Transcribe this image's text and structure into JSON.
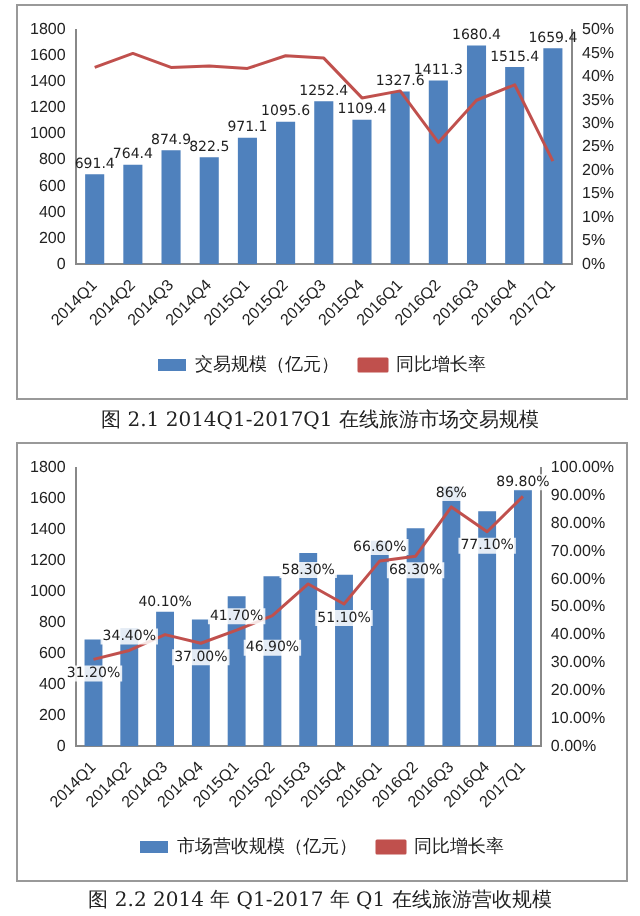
{
  "chart_data": [
    {
      "type": "bar",
      "title": "图 2.1 2014Q1-2017Q1 在线旅游市场交易规模",
      "categories": [
        "2014Q1",
        "2014Q2",
        "2014Q3",
        "2014Q4",
        "2015Q1",
        "2015Q2",
        "2015Q3",
        "2015Q4",
        "2016Q1",
        "2016Q2",
        "2016Q3",
        "2016Q4",
        "2017Q1"
      ],
      "series": [
        {
          "name": "交易规模（亿元）",
          "color": "#4f81bd",
          "values": [
            691.4,
            764.4,
            874.9,
            822.5,
            971.1,
            1095.6,
            1252.4,
            1109.4,
            1327.6,
            1411.3,
            1680.4,
            1515.4,
            1659.4
          ],
          "value_labels": [
            "691.4",
            "764.4",
            "874.9",
            "822.5",
            "971.1",
            "1095.6",
            "1252.4",
            "1109.4",
            "1327.6",
            "1411.3",
            "1680.4",
            "1515.4",
            "1659.4"
          ]
        },
        {
          "name": "同比增长率",
          "type": "line",
          "axis": "y2",
          "color": "#c0504d",
          "values": [
            42,
            45,
            42,
            42.3,
            41.8,
            44.5,
            44,
            35.5,
            37,
            26,
            35,
            38.3,
            22
          ]
        }
      ],
      "ylim": [
        0,
        1800
      ],
      "yticks": [
        0,
        200,
        400,
        600,
        800,
        1000,
        1200,
        1400,
        1600,
        1800
      ],
      "y2lim": [
        0,
        50
      ],
      "y2ticks": [
        {
          "value": 0,
          "label": "0%"
        },
        {
          "value": 5,
          "label": "5%"
        },
        {
          "value": 10,
          "label": "10%"
        },
        {
          "value": 15,
          "label": "15%"
        },
        {
          "value": 20,
          "label": "20%"
        },
        {
          "value": 25,
          "label": "25%"
        },
        {
          "value": 30,
          "label": "30%"
        },
        {
          "value": 35,
          "label": "35%"
        },
        {
          "value": 40,
          "label": "40%"
        },
        {
          "value": 45,
          "label": "45%"
        },
        {
          "value": 50,
          "label": "50%"
        }
      ],
      "grid": false,
      "legend": "bottom",
      "marker": "none"
    },
    {
      "type": "bar",
      "title": "图 2.2 2014 年 Q1-2017 年 Q1 在线旅游营收规模",
      "categories": [
        "2014Q1",
        "2014Q2",
        "2014Q3",
        "2014Q4",
        "2015Q1",
        "2015Q2",
        "2015Q3",
        "2015Q4",
        "2016Q1",
        "2016Q2",
        "2016Q3",
        "2016Q4",
        "2017Q1"
      ],
      "series": [
        {
          "name": "市场营收规模（亿元）",
          "color": "#4f81bd",
          "values": [
            690,
            760,
            870,
            820,
            970,
            1100,
            1250,
            1110,
            1330,
            1410,
            1680,
            1520,
            1660
          ]
        },
        {
          "name": "同比增长率",
          "type": "line",
          "axis": "y2",
          "color": "#c0504d",
          "values": [
            31.2,
            34.4,
            40.1,
            37,
            41.7,
            46.9,
            58.3,
            51.1,
            66.6,
            68.3,
            86,
            77.1,
            89.8
          ],
          "value_labels": [
            "31.20%",
            "34.40%",
            "40.10%",
            "37.00%",
            "41.70%",
            "46.90%",
            "58.30%",
            "51.10%",
            "66.60%",
            "68.30%",
            "86%",
            "77.10%",
            "89.80%"
          ]
        }
      ],
      "ylim": [
        0,
        1800
      ],
      "yticks": [
        0,
        200,
        400,
        600,
        800,
        1000,
        1200,
        1400,
        1600,
        1800
      ],
      "y2lim": [
        0,
        100
      ],
      "y2ticks": [
        {
          "value": 0,
          "label": "0.00%"
        },
        {
          "value": 10,
          "label": "10.00%"
        },
        {
          "value": 20,
          "label": "20.00%"
        },
        {
          "value": 30,
          "label": "30.00%"
        },
        {
          "value": 40,
          "label": "40.00%"
        },
        {
          "value": 50,
          "label": "50.00%"
        },
        {
          "value": 60,
          "label": "60.00%"
        },
        {
          "value": 70,
          "label": "70.00%"
        },
        {
          "value": 80,
          "label": "80.00%"
        },
        {
          "value": 90,
          "label": "90.00%"
        },
        {
          "value": 100,
          "label": "100.00%"
        }
      ],
      "grid": false,
      "legend": "bottom",
      "marker": "none"
    }
  ]
}
